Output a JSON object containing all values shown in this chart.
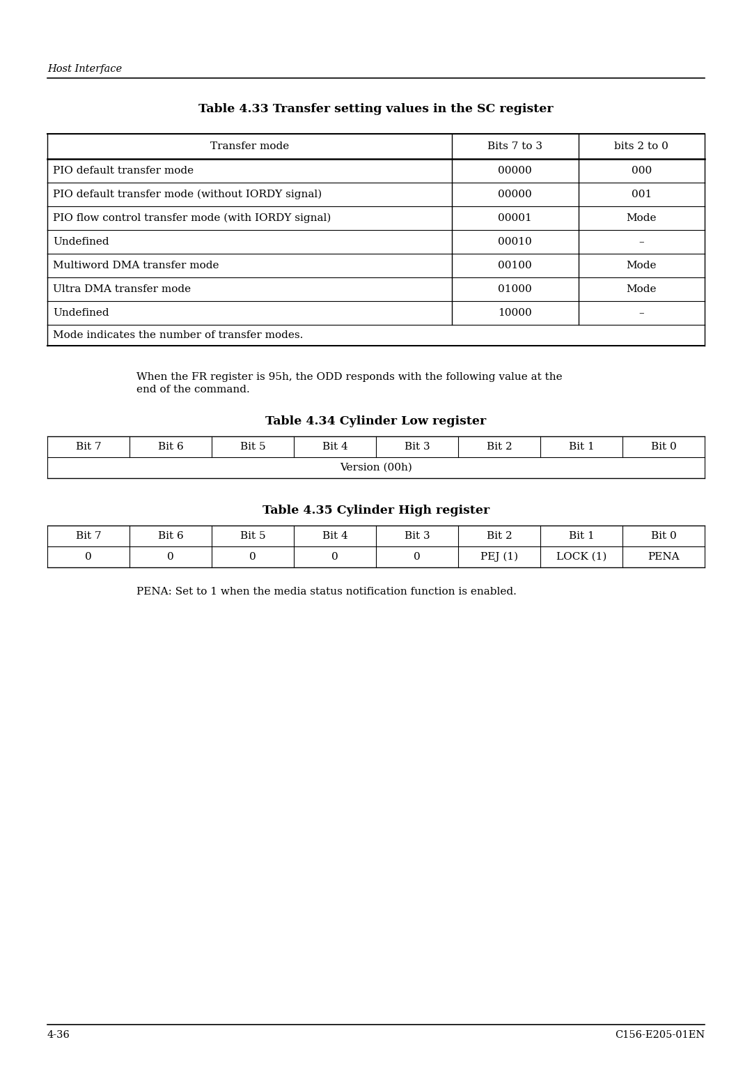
{
  "page_header_text": "Host Interface",
  "page_footer_left": "4-36",
  "page_footer_right": "C156-E205-01EN",
  "table33_title": "Table 4.33 Transfer setting values in the SC register",
  "table33_headers": [
    "Transfer mode",
    "Bits 7 to 3",
    "bits 2 to 0"
  ],
  "table33_rows": [
    [
      "PIO default transfer mode",
      "00000",
      "000"
    ],
    [
      "PIO default transfer mode (without IORDY signal)",
      "00000",
      "001"
    ],
    [
      "PIO flow control transfer mode (with IORDY signal)",
      "00001",
      "Mode"
    ],
    [
      "Undefined",
      "00010",
      "–"
    ],
    [
      "Multiword DMA transfer mode",
      "00100",
      "Mode"
    ],
    [
      "Ultra DMA transfer mode",
      "01000",
      "Mode"
    ],
    [
      "Undefined",
      "10000",
      "–"
    ]
  ],
  "table33_footer": "Mode indicates the number of transfer modes.",
  "paragraph_text": "When the FR register is 95h, the ODD responds with the following value at the\nend of the command.",
  "table34_title": "Table 4.34 Cylinder Low register",
  "table34_headers": [
    "Bit 7",
    "Bit 6",
    "Bit 5",
    "Bit 4",
    "Bit 3",
    "Bit 2",
    "Bit 1",
    "Bit 0"
  ],
  "table34_row2": "Version (00h)",
  "table35_title": "Table 4.35 Cylinder High register",
  "table35_headers": [
    "Bit 7",
    "Bit 6",
    "Bit 5",
    "Bit 4",
    "Bit 3",
    "Bit 2",
    "Bit 1",
    "Bit 0"
  ],
  "table35_row2": [
    "0",
    "0",
    "0",
    "0",
    "0",
    "PEJ (1)",
    "LOCK (1)",
    "PENA"
  ],
  "pena_note": "PENA: Set to 1 when the media status notification function is enabled.",
  "bg_color": "#ffffff"
}
